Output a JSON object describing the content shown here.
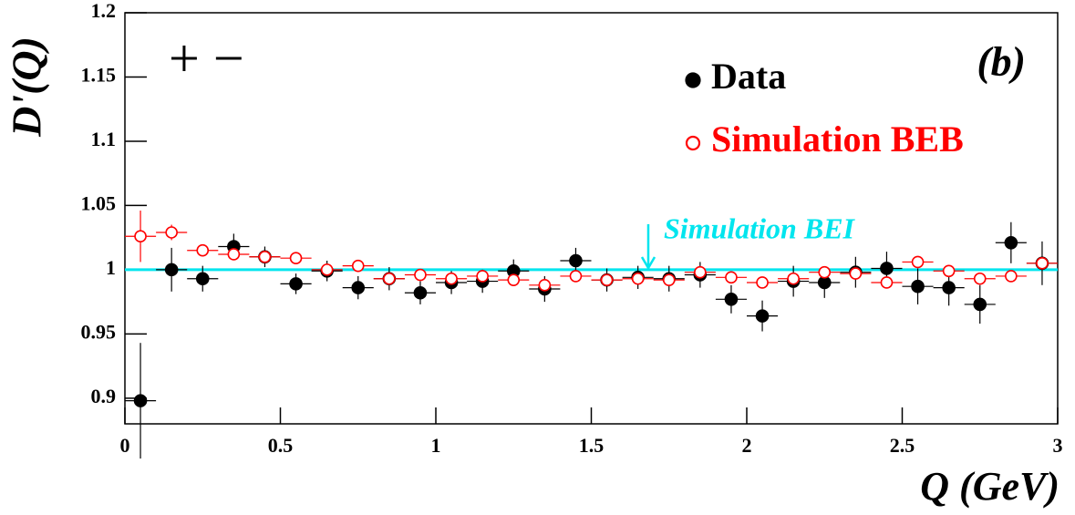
{
  "chart_data": {
    "type": "errorbar",
    "ylabel": "D'(Q)",
    "xlabel": "Q (GeV)",
    "annotations": [
      "+ −",
      "(b)"
    ],
    "reference_line": {
      "name": "Simulation BEI",
      "color": "#00e5ee",
      "y": 1
    },
    "x": [
      0.05,
      0.15,
      0.25,
      0.35,
      0.45,
      0.55,
      0.65,
      0.75,
      0.85,
      0.95,
      1.05,
      1.15,
      1.25,
      1.35,
      1.45,
      1.55,
      1.65,
      1.75,
      1.85,
      1.95,
      2.05,
      2.15,
      2.25,
      2.35,
      2.45,
      2.55,
      2.65,
      2.75,
      2.85,
      2.95
    ],
    "series": [
      {
        "name": "Data",
        "color": "#000000",
        "marker": "filled",
        "values": [
          0.898,
          1.0,
          0.993,
          1.018,
          1.01,
          0.989,
          0.999,
          0.986,
          0.993,
          0.982,
          0.99,
          0.991,
          0.999,
          0.985,
          1.007,
          0.992,
          0.994,
          0.993,
          0.996,
          0.977,
          0.964,
          0.991,
          0.99,
          0.998,
          1.001,
          0.987,
          0.986,
          0.973,
          1.021,
          1.005
        ],
        "errors": [
          0.045,
          0.017,
          0.01,
          0.01,
          0.008,
          0.008,
          0.008,
          0.009,
          0.009,
          0.009,
          0.009,
          0.009,
          0.009,
          0.01,
          0.01,
          0.009,
          0.009,
          0.01,
          0.01,
          0.011,
          0.012,
          0.012,
          0.012,
          0.012,
          0.013,
          0.014,
          0.014,
          0.015,
          0.016,
          0.017
        ]
      },
      {
        "name": "Simulation BEB",
        "color": "#ff0000",
        "marker": "open",
        "values": [
          1.026,
          1.029,
          1.015,
          1.012,
          1.01,
          1.009,
          1.0,
          1.003,
          0.993,
          0.996,
          0.993,
          0.995,
          0.992,
          0.988,
          0.995,
          0.992,
          0.993,
          0.992,
          0.998,
          0.994,
          0.99,
          0.993,
          0.998,
          0.997,
          0.99,
          1.006,
          0.999,
          0.993,
          0.995,
          1.005
        ],
        "errors": [
          0.02,
          0.006,
          0.004,
          0.004,
          0.004,
          0.004,
          0.004,
          0.004,
          0.004,
          0.004,
          0.004,
          0.004,
          0.004,
          0.004,
          0.004,
          0.004,
          0.004,
          0.004,
          0.004,
          0.004,
          0.004,
          0.004,
          0.004,
          0.004,
          0.004,
          0.004,
          0.004,
          0.004,
          0.004,
          0.004
        ]
      }
    ],
    "xlim": [
      0,
      3
    ],
    "ylim": [
      0.88,
      1.2
    ],
    "xticks": [
      0,
      0.5,
      1,
      1.5,
      2,
      2.5,
      3
    ],
    "yticks": [
      0.9,
      0.95,
      1,
      1.05,
      1.1,
      1.15,
      1.2
    ]
  }
}
